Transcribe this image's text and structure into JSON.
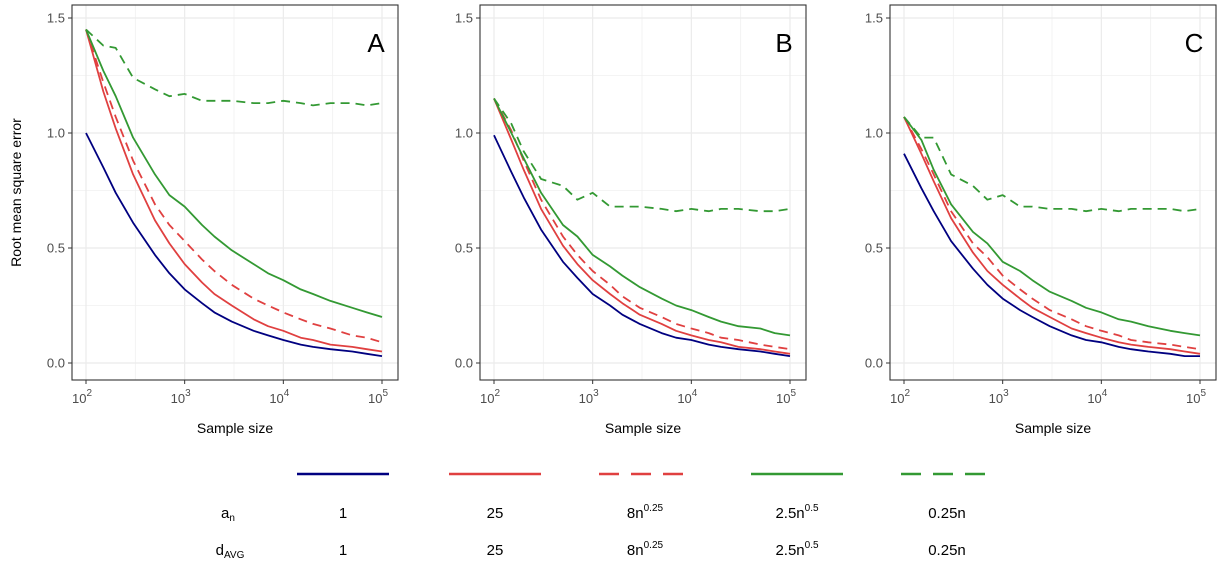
{
  "chart_data": [
    {
      "type": "line",
      "panel_label": "A",
      "xlabel": "Sample size",
      "ylabel": "Root mean square error",
      "xscale": "log10",
      "xlim": [
        100,
        100000
      ],
      "ylim": [
        0,
        1.5
      ],
      "grid": true,
      "x": [
        100,
        150,
        200,
        300,
        500,
        700,
        1000,
        1500,
        2000,
        3000,
        5000,
        7000,
        10000,
        15000,
        20000,
        30000,
        50000,
        70000,
        100000
      ],
      "series": [
        {
          "id": "s1",
          "color": "#000080",
          "dash": "solid",
          "values": [
            1.0,
            0.85,
            0.74,
            0.61,
            0.47,
            0.39,
            0.32,
            0.26,
            0.22,
            0.18,
            0.14,
            0.12,
            0.1,
            0.08,
            0.07,
            0.06,
            0.05,
            0.04,
            0.03
          ]
        },
        {
          "id": "s2",
          "color": "#e04040",
          "dash": "solid",
          "values": [
            1.45,
            1.18,
            1.02,
            0.82,
            0.62,
            0.52,
            0.43,
            0.35,
            0.3,
            0.25,
            0.19,
            0.16,
            0.14,
            0.11,
            0.1,
            0.08,
            0.07,
            0.06,
            0.05
          ]
        },
        {
          "id": "s3",
          "color": "#e04040",
          "dash": "dashed",
          "values": [
            1.45,
            1.22,
            1.07,
            0.88,
            0.69,
            0.6,
            0.53,
            0.45,
            0.4,
            0.34,
            0.28,
            0.25,
            0.22,
            0.19,
            0.17,
            0.15,
            0.12,
            0.11,
            0.09
          ]
        },
        {
          "id": "s4",
          "color": "#339933",
          "dash": "solid",
          "values": [
            1.45,
            1.27,
            1.16,
            0.98,
            0.82,
            0.73,
            0.68,
            0.6,
            0.55,
            0.49,
            0.43,
            0.39,
            0.36,
            0.32,
            0.3,
            0.27,
            0.24,
            0.22,
            0.2
          ]
        },
        {
          "id": "s5",
          "color": "#339933",
          "dash": "dashed",
          "values": [
            1.45,
            1.38,
            1.37,
            1.24,
            1.19,
            1.16,
            1.17,
            1.14,
            1.14,
            1.14,
            1.13,
            1.13,
            1.14,
            1.13,
            1.12,
            1.13,
            1.13,
            1.12,
            1.13
          ]
        }
      ]
    },
    {
      "type": "line",
      "panel_label": "B",
      "xlabel": "Sample size",
      "xscale": "log10",
      "xlim": [
        100,
        100000
      ],
      "ylim": [
        0,
        1.5
      ],
      "grid": true,
      "x": [
        100,
        150,
        200,
        300,
        500,
        700,
        1000,
        1500,
        2000,
        3000,
        5000,
        7000,
        10000,
        15000,
        20000,
        30000,
        50000,
        70000,
        100000
      ],
      "series": [
        {
          "id": "s1",
          "color": "#000080",
          "dash": "solid",
          "values": [
            0.99,
            0.83,
            0.72,
            0.58,
            0.44,
            0.37,
            0.3,
            0.25,
            0.21,
            0.17,
            0.13,
            0.11,
            0.1,
            0.08,
            0.07,
            0.06,
            0.05,
            0.04,
            0.03
          ]
        },
        {
          "id": "s2",
          "color": "#e04040",
          "dash": "solid",
          "values": [
            1.15,
            0.97,
            0.84,
            0.67,
            0.51,
            0.43,
            0.36,
            0.3,
            0.26,
            0.21,
            0.17,
            0.14,
            0.12,
            0.1,
            0.09,
            0.07,
            0.06,
            0.05,
            0.04
          ]
        },
        {
          "id": "s3",
          "color": "#e04040",
          "dash": "dashed",
          "values": [
            1.15,
            1.01,
            0.88,
            0.71,
            0.55,
            0.47,
            0.4,
            0.34,
            0.29,
            0.24,
            0.2,
            0.17,
            0.15,
            0.13,
            0.11,
            0.1,
            0.08,
            0.07,
            0.06
          ]
        },
        {
          "id": "s4",
          "color": "#339933",
          "dash": "solid",
          "values": [
            1.15,
            1.0,
            0.89,
            0.74,
            0.6,
            0.55,
            0.47,
            0.42,
            0.38,
            0.33,
            0.28,
            0.25,
            0.23,
            0.2,
            0.18,
            0.16,
            0.15,
            0.13,
            0.12
          ]
        },
        {
          "id": "s5",
          "color": "#339933",
          "dash": "dashed",
          "values": [
            1.15,
            1.04,
            0.92,
            0.8,
            0.77,
            0.71,
            0.74,
            0.68,
            0.68,
            0.68,
            0.67,
            0.66,
            0.67,
            0.66,
            0.67,
            0.67,
            0.66,
            0.66,
            0.67
          ]
        }
      ]
    },
    {
      "type": "line",
      "panel_label": "C",
      "xlabel": "Sample size",
      "xscale": "log10",
      "xlim": [
        100,
        100000
      ],
      "ylim": [
        0,
        1.5
      ],
      "grid": true,
      "x": [
        100,
        150,
        200,
        300,
        500,
        700,
        1000,
        1500,
        2000,
        3000,
        5000,
        7000,
        10000,
        15000,
        20000,
        30000,
        50000,
        70000,
        100000
      ],
      "series": [
        {
          "id": "s1",
          "color": "#000080",
          "dash": "solid",
          "values": [
            0.91,
            0.76,
            0.66,
            0.53,
            0.41,
            0.34,
            0.28,
            0.23,
            0.2,
            0.16,
            0.12,
            0.1,
            0.09,
            0.07,
            0.06,
            0.05,
            0.04,
            0.03,
            0.03
          ]
        },
        {
          "id": "s2",
          "color": "#e04040",
          "dash": "solid",
          "values": [
            1.07,
            0.91,
            0.79,
            0.63,
            0.48,
            0.4,
            0.34,
            0.28,
            0.24,
            0.2,
            0.15,
            0.13,
            0.11,
            0.09,
            0.08,
            0.07,
            0.06,
            0.05,
            0.04
          ]
        },
        {
          "id": "s3",
          "color": "#e04040",
          "dash": "dashed",
          "values": [
            1.07,
            0.93,
            0.82,
            0.66,
            0.52,
            0.46,
            0.38,
            0.32,
            0.28,
            0.23,
            0.19,
            0.16,
            0.14,
            0.12,
            0.1,
            0.09,
            0.08,
            0.07,
            0.06
          ]
        },
        {
          "id": "s4",
          "color": "#339933",
          "dash": "solid",
          "values": [
            1.07,
            0.97,
            0.84,
            0.69,
            0.57,
            0.52,
            0.44,
            0.4,
            0.36,
            0.31,
            0.27,
            0.24,
            0.22,
            0.19,
            0.18,
            0.16,
            0.14,
            0.13,
            0.12
          ]
        },
        {
          "id": "s5",
          "color": "#339933",
          "dash": "dashed",
          "values": [
            1.07,
            0.98,
            0.98,
            0.82,
            0.77,
            0.71,
            0.73,
            0.68,
            0.68,
            0.67,
            0.67,
            0.66,
            0.67,
            0.66,
            0.67,
            0.67,
            0.67,
            0.66,
            0.67
          ]
        }
      ]
    }
  ],
  "y_ticks": [
    "0.0",
    "0.5",
    "1.0",
    "1.5"
  ],
  "x_ticks": [
    {
      "base": "10",
      "exp": "2"
    },
    {
      "base": "10",
      "exp": "3"
    },
    {
      "base": "10",
      "exp": "4"
    },
    {
      "base": "10",
      "exp": "5"
    }
  ],
  "legend": {
    "row1_label": {
      "main": "a",
      "sub": "n"
    },
    "row2_label": {
      "main": "d",
      "sub": "AVG"
    },
    "entries": [
      {
        "color": "#000080",
        "dash": "solid",
        "a_main": "1",
        "a_sup": "",
        "d_main": "1",
        "d_sup": ""
      },
      {
        "color": "#e04040",
        "dash": "solid",
        "a_main": "25",
        "a_sup": "",
        "d_main": "25",
        "d_sup": ""
      },
      {
        "color": "#e04040",
        "dash": "dashed",
        "a_main": "8n",
        "a_sup": "0.25",
        "d_main": "8n",
        "d_sup": "0.25"
      },
      {
        "color": "#339933",
        "dash": "solid",
        "a_main": "2.5n",
        "a_sup": "0.5",
        "d_main": "2.5n",
        "d_sup": "0.5"
      },
      {
        "color": "#339933",
        "dash": "dashed",
        "a_main": "0.25n",
        "a_sup": "",
        "d_main": "0.25n",
        "d_sup": ""
      }
    ]
  }
}
